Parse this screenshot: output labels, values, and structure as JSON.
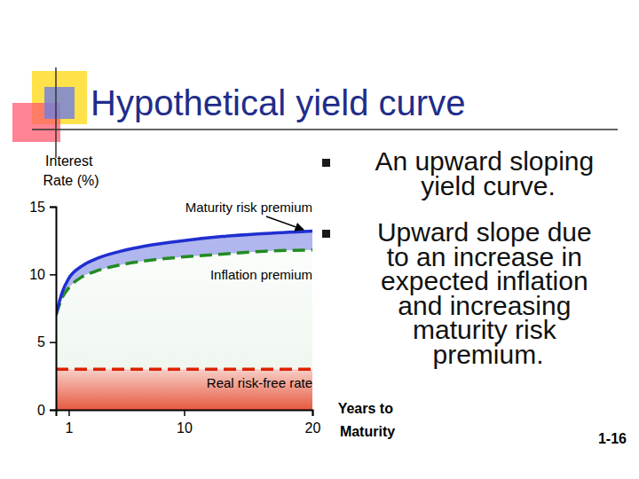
{
  "chart_data": {
    "type": "area",
    "title": "Hypothetical yield curve",
    "x_label": "Years to Maturity",
    "y_label": "Interest Rate (%)",
    "x": [
      0,
      0.5,
      1,
      2,
      3,
      5,
      7,
      10,
      13,
      16,
      20
    ],
    "series": [
      {
        "name": "Real risk-free rate",
        "color": "#dd2200",
        "line_style": "dashed",
        "values": [
          3,
          3,
          3,
          3,
          3,
          3,
          3,
          3,
          3,
          3,
          3
        ]
      },
      {
        "name": "Inflation premium",
        "color": "#228b22",
        "line_style": "dashed",
        "values": [
          4,
          5.3,
          6,
          6.8,
          7.2,
          7.7,
          8,
          8.3,
          8.5,
          8.7,
          8.8
        ]
      },
      {
        "name": "Maturity risk premium",
        "color": "#1f2fd0",
        "line_style": "solid",
        "values": [
          0,
          0.4,
          0.7,
          0.8,
          0.9,
          1.0,
          1.1,
          1.2,
          1.3,
          1.3,
          1.4
        ]
      }
    ],
    "stacked": true,
    "xlim": [
      0,
      20
    ],
    "xticks": [
      1,
      10,
      20
    ],
    "ylim": [
      0,
      15
    ],
    "yticks": [
      0,
      5,
      10,
      15
    ],
    "annotations": [
      "An upward sloping yield curve.",
      "Upward slope due to an increase in expected inflation and increasing maturity risk premium."
    ],
    "footer": "1-16"
  }
}
